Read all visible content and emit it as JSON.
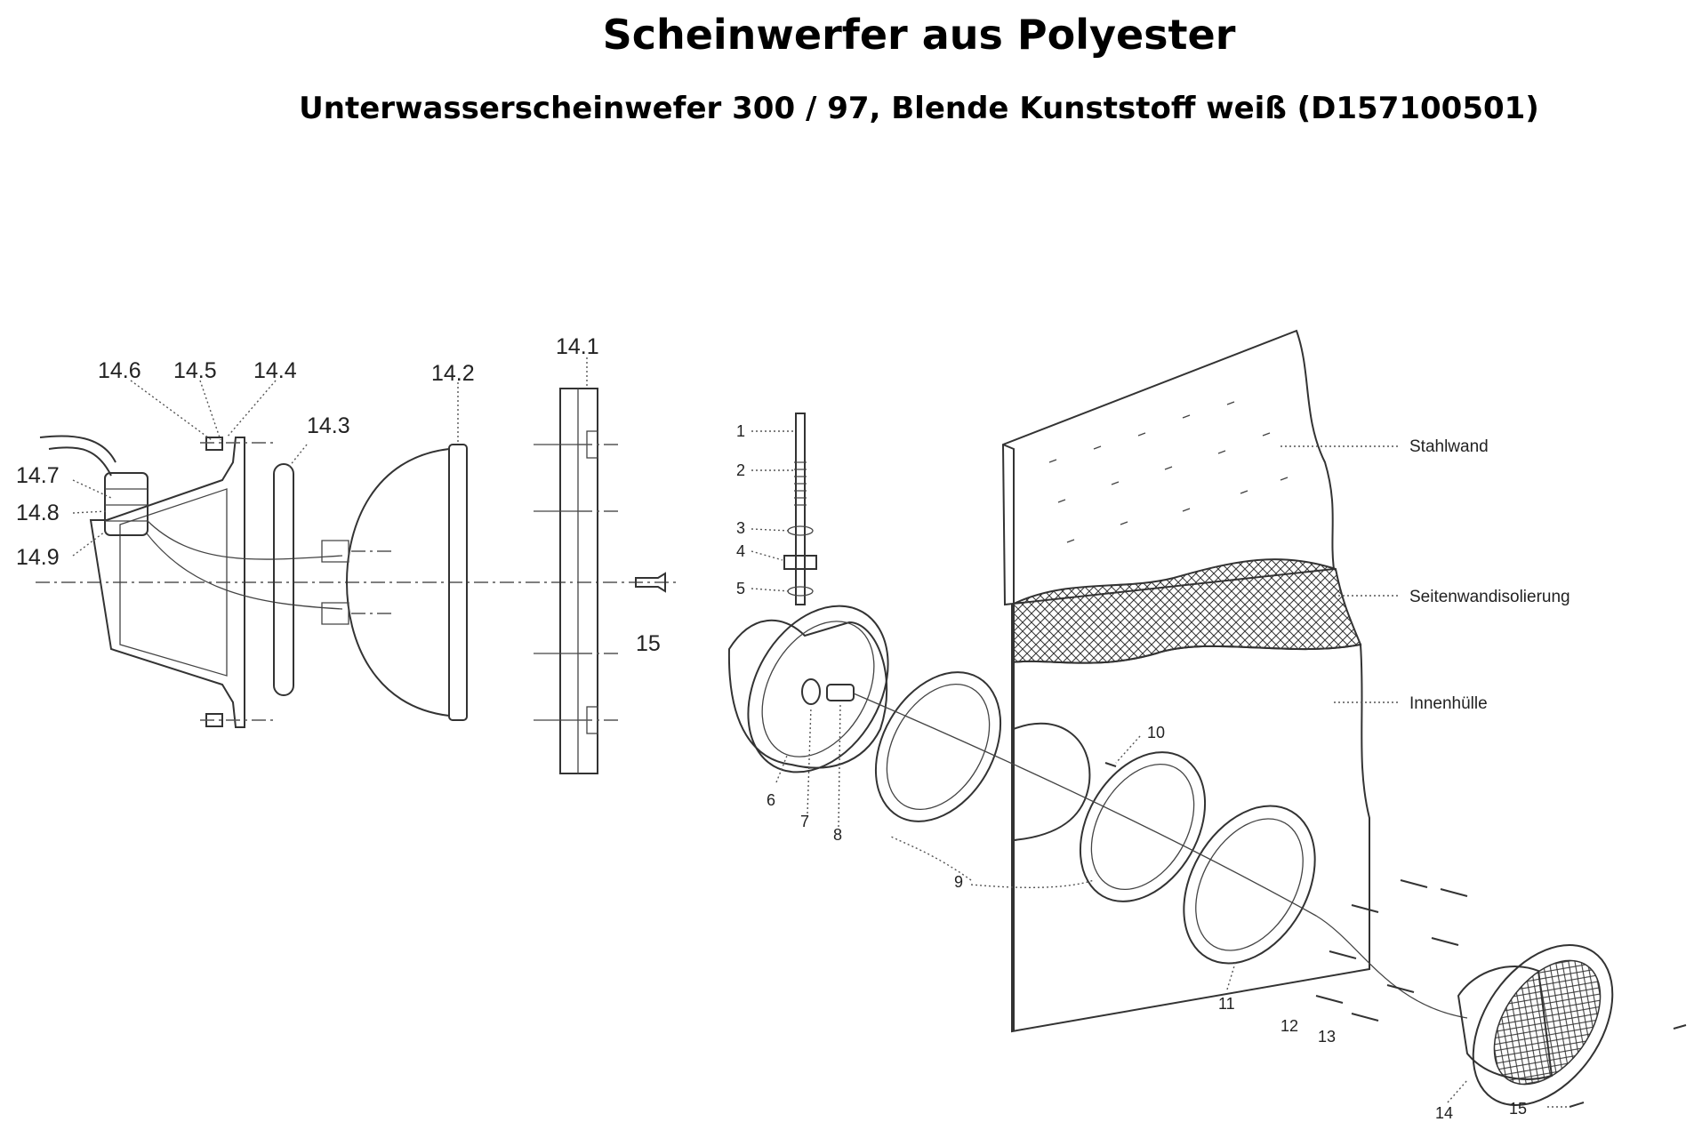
{
  "header": {
    "title": "Scheinwerfer aus Polyester",
    "subtitle": "Unterwasserscheinwefer 300 / 97, Blende Kunststoff weiß (D157100501)"
  },
  "left_view": {
    "labels": [
      "14.6",
      "14.5",
      "14.4",
      "14.3",
      "14.2",
      "14.1",
      "14.7",
      "14.8",
      "14.9",
      "15"
    ]
  },
  "right_view": {
    "labels": [
      "1",
      "2",
      "3",
      "4",
      "5",
      "6",
      "7",
      "8",
      "9",
      "10",
      "11",
      "12",
      "13",
      "14",
      "15"
    ],
    "wall_labels": {
      "steel": "Stahlwand",
      "insulation": "Seitenwandisolierung",
      "inner": "Innenhülle"
    }
  }
}
